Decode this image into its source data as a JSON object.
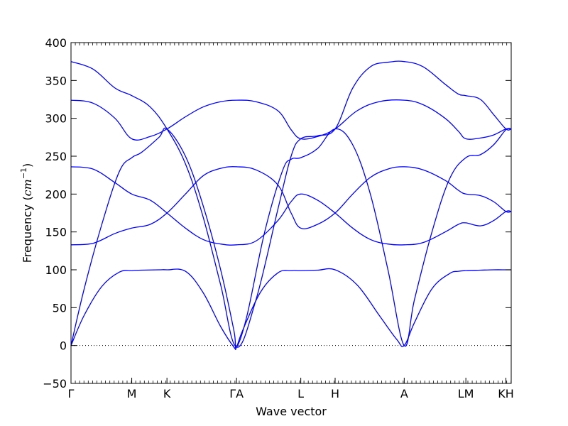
{
  "chart_data": {
    "type": "line",
    "xlabel": "Wave vector",
    "ylabel_prefix": "Frequency (",
    "ylabel_unit": "cm",
    "ylabel_exp": "−1",
    "ylabel_suffix": ")",
    "ylim": [
      -50,
      400
    ],
    "yticks": [
      -50,
      0,
      50,
      100,
      150,
      200,
      250,
      300,
      350,
      400
    ],
    "ytick_labels": [
      "−50",
      "0",
      "50",
      "100",
      "150",
      "200",
      "250",
      "300",
      "350",
      "400"
    ],
    "xlim": [
      0,
      1
    ],
    "xticks": [
      {
        "x": 0.0,
        "label": "Γ"
      },
      {
        "x": 0.138,
        "label": "M"
      },
      {
        "x": 0.218,
        "label": "K"
      },
      {
        "x": 0.376,
        "label": "ΓA"
      },
      {
        "x": 0.522,
        "label": "L"
      },
      {
        "x": 0.6,
        "label": "H"
      },
      {
        "x": 0.757,
        "label": "A"
      },
      {
        "x": 0.897,
        "label": "LM"
      },
      {
        "x": 0.988,
        "label": "KH"
      }
    ],
    "zero_line": true,
    "line_color": "#0000ff",
    "series": [
      {
        "x": [
          0,
          0.03,
          0.07,
          0.11,
          0.138,
          0.16,
          0.2,
          0.218,
          0.26,
          0.3,
          0.34,
          0.37,
          0.376,
          0.39,
          0.43,
          0.47,
          0.5,
          0.522,
          0.56,
          0.6,
          0.65,
          0.7,
          0.74,
          0.757,
          0.78,
          0.82,
          0.86,
          0.88,
          0.897,
          0.93,
          0.96,
          0.988,
          1.0
        ],
        "y": [
          0,
          40,
          78,
          97,
          99,
          99.5,
          100,
          100,
          98,
          70,
          25,
          -2,
          -2,
          20,
          70,
          96,
          99,
          99,
          99.5,
          100,
          80,
          40,
          8,
          0,
          30,
          75,
          95,
          98,
          99,
          99.5,
          100,
          100,
          100
        ]
      },
      {
        "x": [
          0,
          0.03,
          0.07,
          0.11,
          0.138,
          0.16,
          0.2,
          0.218,
          0.26,
          0.3,
          0.34,
          0.37,
          0.376,
          0.4,
          0.44,
          0.48,
          0.5,
          0.522,
          0.56,
          0.6,
          0.64,
          0.68,
          0.72,
          0.757,
          0.78,
          0.82,
          0.86,
          0.897,
          0.93,
          0.96,
          0.988,
          1.0
        ],
        "y": [
          0,
          75,
          160,
          230,
          248,
          255,
          275,
          286,
          250,
          185,
          100,
          20,
          -2,
          40,
          150,
          230,
          246,
          248,
          260,
          286,
          265,
          200,
          100,
          0,
          60,
          150,
          220,
          248,
          252,
          265,
          285,
          286
        ]
      },
      {
        "x": [
          0,
          0.05,
          0.1,
          0.138,
          0.18,
          0.218,
          0.26,
          0.3,
          0.34,
          0.376,
          0.42,
          0.47,
          0.5,
          0.522,
          0.56,
          0.6,
          0.64,
          0.68,
          0.72,
          0.757,
          0.8,
          0.85,
          0.88,
          0.897,
          0.93,
          0.96,
          0.988,
          1.0
        ],
        "y": [
          375,
          365,
          340,
          330,
          315,
          286,
          240,
          170,
          80,
          -2,
          60,
          180,
          250,
          273,
          277,
          286,
          340,
          368,
          374,
          375,
          368,
          345,
          332,
          330,
          325,
          305,
          286,
          286
        ]
      },
      {
        "x": [
          0,
          0.05,
          0.1,
          0.138,
          0.18,
          0.218,
          0.26,
          0.3,
          0.34,
          0.376,
          0.42,
          0.47,
          0.5,
          0.522,
          0.56,
          0.6,
          0.65,
          0.7,
          0.757,
          0.8,
          0.85,
          0.88,
          0.897,
          0.93,
          0.96,
          0.988,
          1.0
        ],
        "y": [
          324,
          320,
          300,
          273,
          276,
          286,
          302,
          315,
          322,
          324,
          322,
          310,
          285,
          273,
          276,
          286,
          310,
          322,
          324,
          318,
          300,
          283,
          273,
          274,
          278,
          286,
          286
        ]
      },
      {
        "x": [
          0,
          0.05,
          0.1,
          0.138,
          0.18,
          0.218,
          0.26,
          0.3,
          0.34,
          0.376,
          0.42,
          0.47,
          0.5,
          0.522,
          0.56,
          0.6,
          0.64,
          0.68,
          0.72,
          0.757,
          0.8,
          0.85,
          0.88,
          0.897,
          0.93,
          0.96,
          0.988,
          1.0
        ],
        "y": [
          236,
          233,
          215,
          200,
          192,
          175,
          155,
          140,
          134,
          133,
          138,
          165,
          190,
          200,
          192,
          175,
          155,
          140,
          134,
          133,
          136,
          150,
          160,
          162,
          158,
          165,
          177,
          177
        ]
      },
      {
        "x": [
          0,
          0.05,
          0.1,
          0.138,
          0.18,
          0.218,
          0.26,
          0.3,
          0.34,
          0.376,
          0.42,
          0.47,
          0.5,
          0.522,
          0.56,
          0.6,
          0.64,
          0.68,
          0.72,
          0.757,
          0.8,
          0.85,
          0.88,
          0.897,
          0.93,
          0.96,
          0.988,
          1.0
        ],
        "y": [
          133,
          135,
          148,
          155,
          160,
          175,
          200,
          224,
          234,
          236,
          232,
          212,
          175,
          155,
          160,
          175,
          200,
          222,
          233,
          236,
          232,
          218,
          205,
          200,
          198,
          190,
          177,
          177
        ]
      }
    ]
  }
}
